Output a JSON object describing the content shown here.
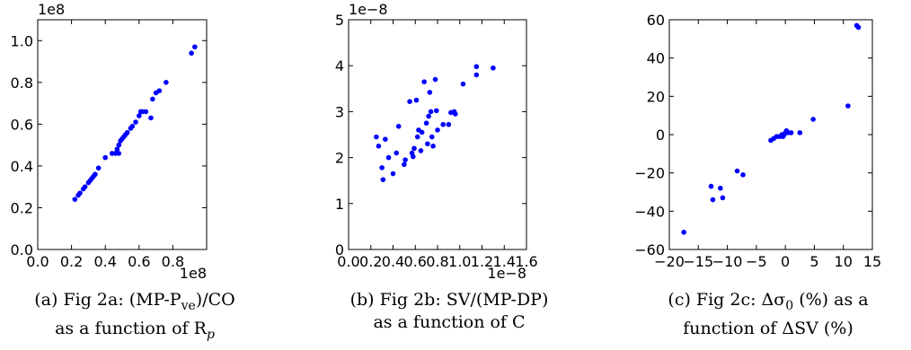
{
  "chart_data": [
    {
      "type": "scatter",
      "title": "",
      "xlabel": "",
      "ylabel": "",
      "x_multiplier": "1e8",
      "y_multiplier": "1e8",
      "xlim": [
        0.0,
        1.0
      ],
      "ylim": [
        0.0,
        1.1
      ],
      "x_ticks": [
        "0.0",
        "0.2",
        "0.4",
        "0.6",
        "0.8"
      ],
      "x_tick_values": [
        0.0,
        0.2,
        0.4,
        0.6,
        0.8
      ],
      "y_ticks": [
        "0.0",
        "0.2",
        "0.4",
        "0.6",
        "0.8",
        "1.0"
      ],
      "y_tick_values": [
        0.0,
        0.2,
        0.4,
        0.6,
        0.8,
        1.0
      ],
      "marker_color": "#0000ff",
      "grid": false,
      "points": [
        [
          0.22,
          0.24
        ],
        [
          0.24,
          0.26
        ],
        [
          0.25,
          0.27
        ],
        [
          0.27,
          0.29
        ],
        [
          0.28,
          0.3
        ],
        [
          0.3,
          0.32
        ],
        [
          0.31,
          0.33
        ],
        [
          0.32,
          0.34
        ],
        [
          0.33,
          0.35
        ],
        [
          0.34,
          0.36
        ],
        [
          0.36,
          0.39
        ],
        [
          0.4,
          0.44
        ],
        [
          0.44,
          0.46
        ],
        [
          0.46,
          0.46
        ],
        [
          0.47,
          0.48
        ],
        [
          0.48,
          0.5
        ],
        [
          0.48,
          0.46
        ],
        [
          0.49,
          0.52
        ],
        [
          0.5,
          0.53
        ],
        [
          0.51,
          0.54
        ],
        [
          0.52,
          0.55
        ],
        [
          0.53,
          0.56
        ],
        [
          0.55,
          0.58
        ],
        [
          0.56,
          0.59
        ],
        [
          0.58,
          0.61
        ],
        [
          0.6,
          0.64
        ],
        [
          0.61,
          0.66
        ],
        [
          0.62,
          0.66
        ],
        [
          0.64,
          0.66
        ],
        [
          0.67,
          0.63
        ],
        [
          0.68,
          0.72
        ],
        [
          0.7,
          0.75
        ],
        [
          0.72,
          0.76
        ],
        [
          0.76,
          0.8
        ],
        [
          0.91,
          0.94
        ],
        [
          0.93,
          0.97
        ]
      ],
      "caption_line1": "(a) Fig 2a: (MP-P",
      "caption_sub1": "ve",
      "caption_line1_end": ")/CO",
      "caption_line2": "as a function of R",
      "caption_sub2": "p"
    },
    {
      "type": "scatter",
      "title": "",
      "xlabel": "",
      "ylabel": "",
      "x_multiplier": "1e−8",
      "y_multiplier": "1e−8",
      "xlim": [
        0.0,
        1.6
      ],
      "ylim": [
        0.0,
        5.0
      ],
      "x_ticks": [
        "0.0",
        "0.2",
        "0.4",
        "0.6",
        "0.8",
        "1.0",
        "1.2",
        "1.4",
        "1.6"
      ],
      "x_tick_values": [
        0.0,
        0.2,
        0.4,
        0.6,
        0.8,
        1.0,
        1.2,
        1.4,
        1.6
      ],
      "y_ticks": [
        "0",
        "1",
        "2",
        "3",
        "4",
        "5"
      ],
      "y_tick_values": [
        0,
        1,
        2,
        3,
        4,
        5
      ],
      "marker_color": "#0000ff",
      "grid": false,
      "points": [
        [
          0.25,
          2.45
        ],
        [
          0.27,
          2.25
        ],
        [
          0.3,
          1.78
        ],
        [
          0.31,
          1.52
        ],
        [
          0.33,
          2.4
        ],
        [
          0.36,
          2.0
        ],
        [
          0.4,
          1.65
        ],
        [
          0.43,
          2.1
        ],
        [
          0.45,
          2.68
        ],
        [
          0.5,
          1.85
        ],
        [
          0.51,
          1.95
        ],
        [
          0.55,
          3.22
        ],
        [
          0.57,
          2.1
        ],
        [
          0.58,
          2.02
        ],
        [
          0.59,
          2.2
        ],
        [
          0.61,
          3.25
        ],
        [
          0.62,
          2.45
        ],
        [
          0.63,
          2.6
        ],
        [
          0.65,
          2.15
        ],
        [
          0.66,
          2.55
        ],
        [
          0.68,
          3.65
        ],
        [
          0.7,
          2.75
        ],
        [
          0.71,
          2.3
        ],
        [
          0.72,
          2.9
        ],
        [
          0.73,
          3.42
        ],
        [
          0.74,
          3.0
        ],
        [
          0.75,
          2.45
        ],
        [
          0.76,
          2.25
        ],
        [
          0.78,
          3.7
        ],
        [
          0.79,
          3.02
        ],
        [
          0.8,
          2.6
        ],
        [
          0.85,
          2.72
        ],
        [
          0.9,
          2.72
        ],
        [
          0.92,
          2.98
        ],
        [
          0.95,
          3.0
        ],
        [
          0.96,
          2.95
        ],
        [
          1.03,
          3.6
        ],
        [
          1.15,
          3.98
        ],
        [
          1.15,
          3.8
        ],
        [
          1.3,
          3.95
        ]
      ],
      "caption_line1": "(b) Fig 2b: SV/(MP-DP)",
      "caption_line2": "as a function of C"
    },
    {
      "type": "scatter",
      "title": "",
      "xlabel": "",
      "ylabel": "",
      "xlim": [
        -20,
        15
      ],
      "ylim": [
        -60,
        60
      ],
      "x_ticks": [
        "−20",
        "−15",
        "−10",
        "−5",
        "0",
        "5",
        "10",
        "15"
      ],
      "x_tick_values": [
        -20,
        -15,
        -10,
        -5,
        0,
        5,
        10,
        15
      ],
      "y_ticks": [
        "−60",
        "−40",
        "−20",
        "0",
        "20",
        "40",
        "60"
      ],
      "y_tick_values": [
        -60,
        -40,
        -20,
        0,
        20,
        40,
        60
      ],
      "marker_color": "#0000ff",
      "grid": false,
      "points": [
        [
          -17.5,
          -51
        ],
        [
          -12.8,
          -27
        ],
        [
          -12.5,
          -34
        ],
        [
          -11.2,
          -28
        ],
        [
          -10.8,
          -33
        ],
        [
          -8.3,
          -19
        ],
        [
          -7.3,
          -21
        ],
        [
          -2.5,
          -3
        ],
        [
          -2.0,
          -2
        ],
        [
          -1.5,
          -1
        ],
        [
          -1.0,
          -1
        ],
        [
          -0.6,
          0
        ],
        [
          -0.4,
          -1
        ],
        [
          -0.2,
          0
        ],
        [
          0.0,
          1
        ],
        [
          0.2,
          2
        ],
        [
          0.5,
          1
        ],
        [
          1.0,
          1
        ],
        [
          2.5,
          1
        ],
        [
          4.8,
          8
        ],
        [
          10.8,
          15
        ],
        [
          12.3,
          57
        ],
        [
          12.6,
          56
        ]
      ],
      "caption_line1": "(c) Fig 2c: Δσ",
      "caption_sub1": "0",
      "caption_line1_end": " (%) as a",
      "caption_line2": "function of ΔSV (%)"
    }
  ]
}
